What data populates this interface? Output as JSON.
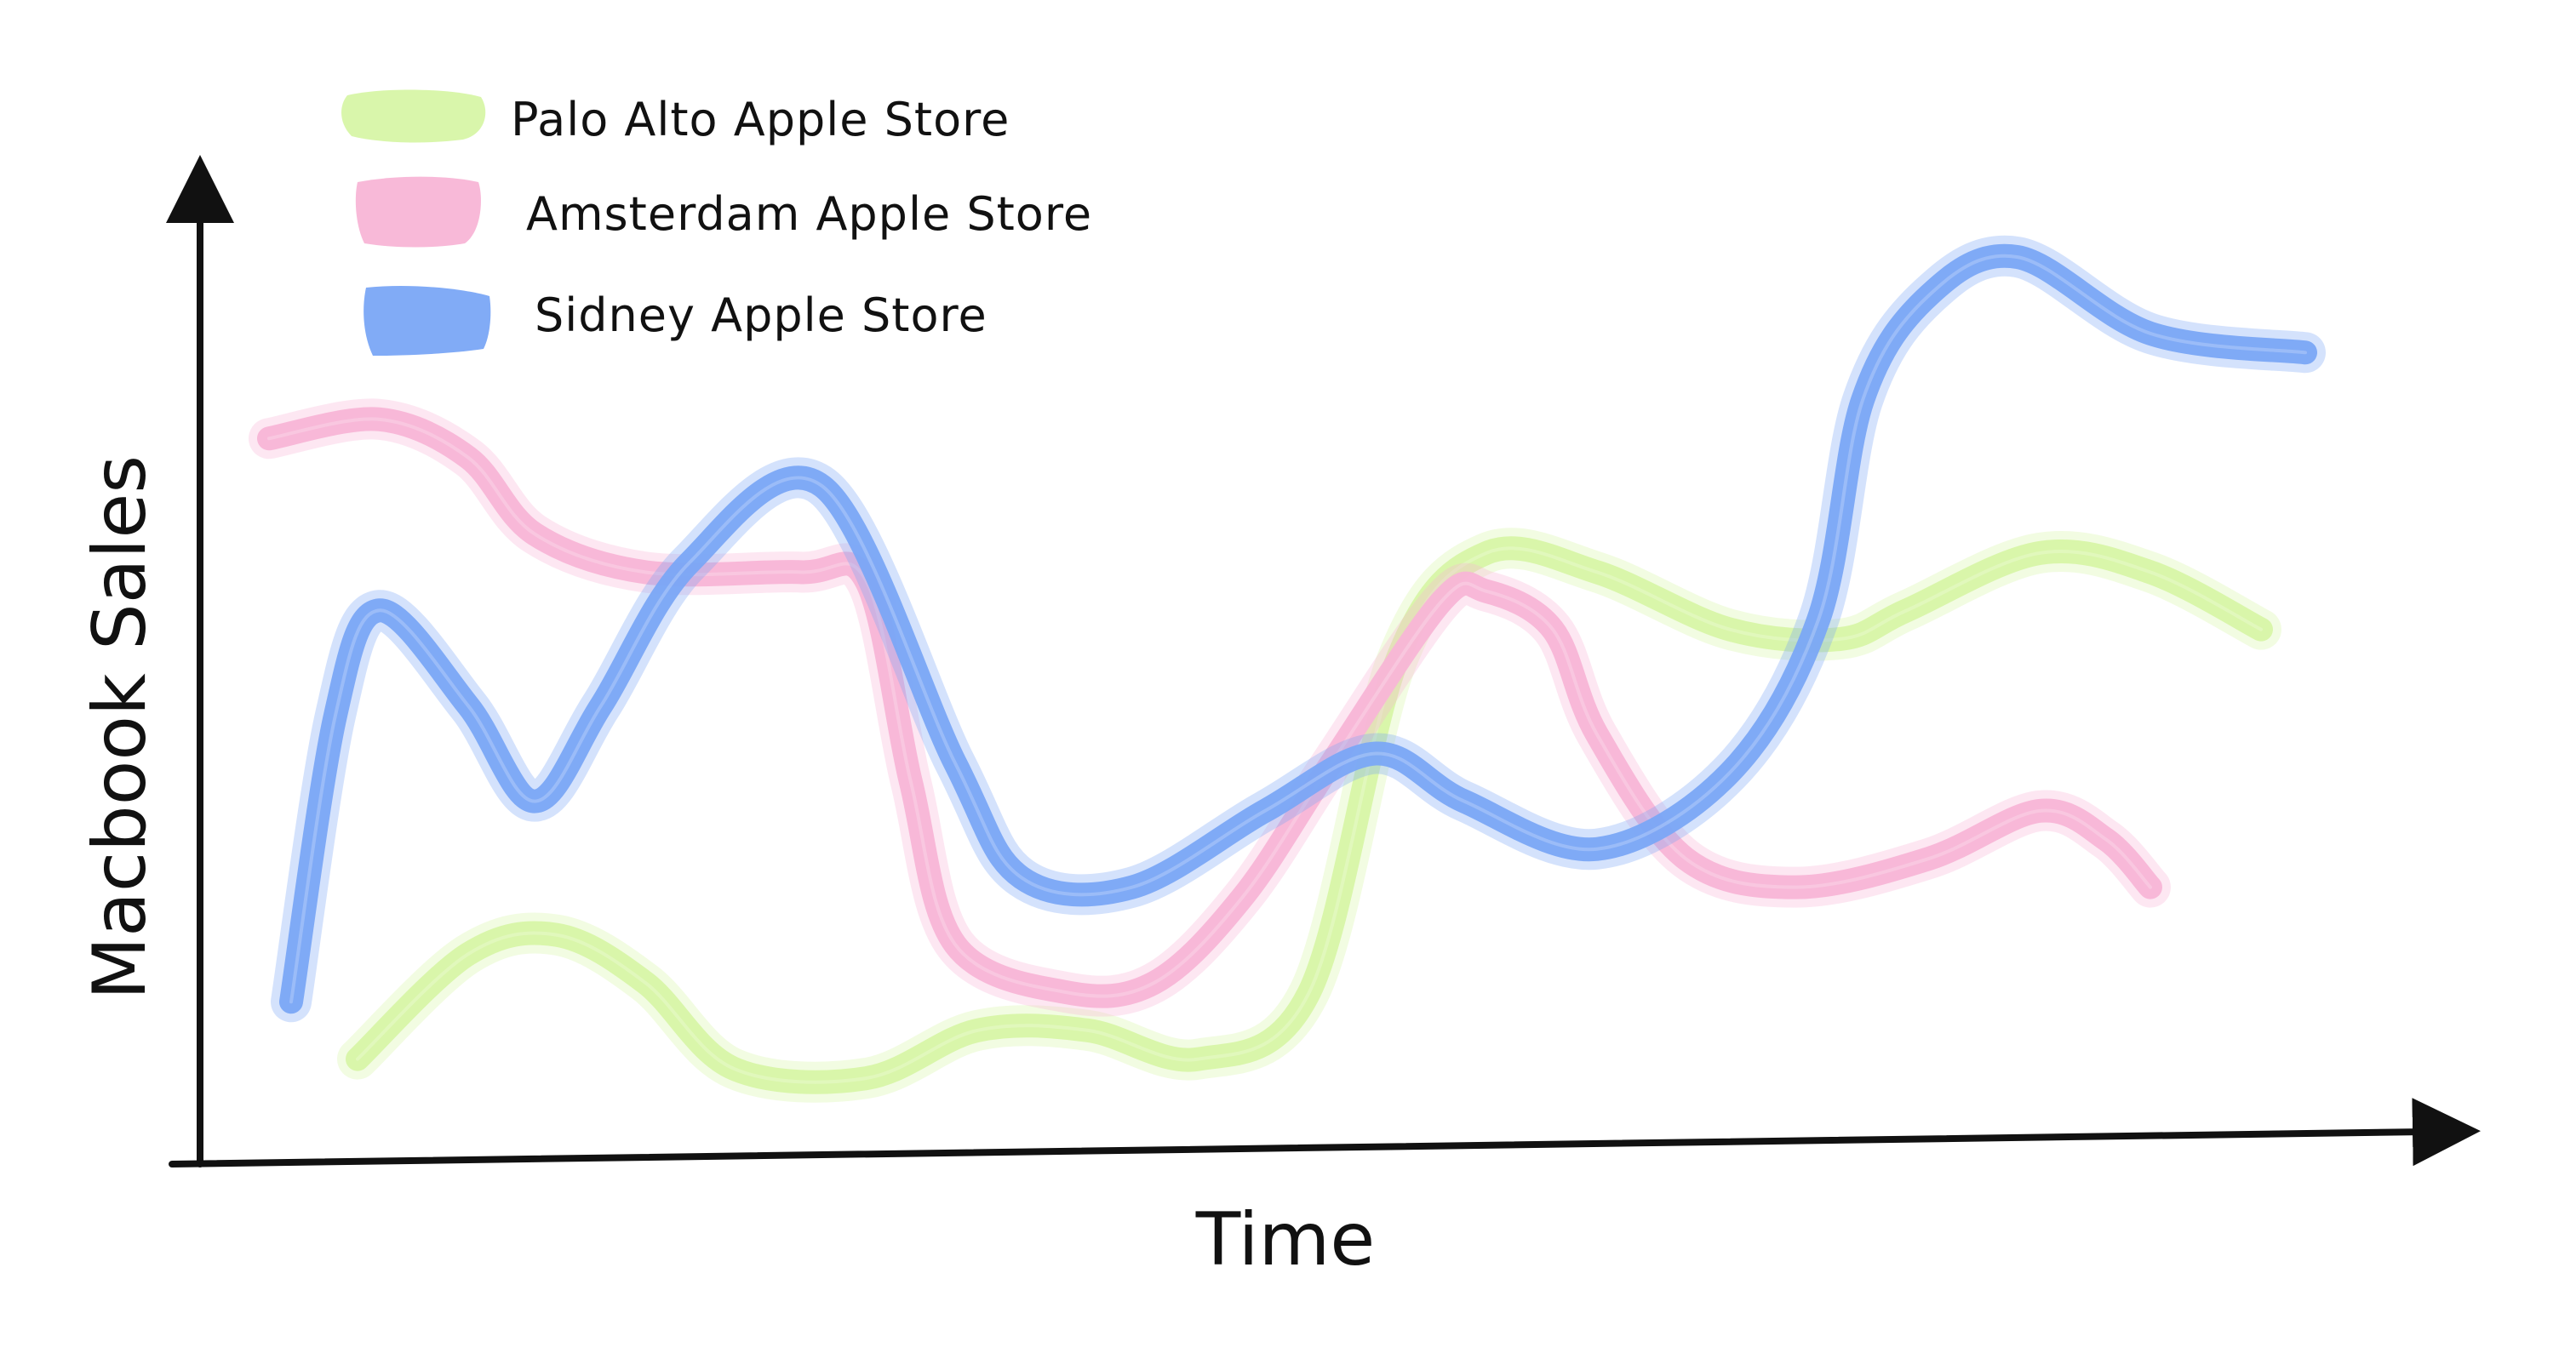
{
  "chart_data": {
    "type": "line",
    "xlabel": "Time",
    "ylabel": "Macbook Sales",
    "legend_position": "top-left",
    "grid": false,
    "axis_ticks": false,
    "series": [
      {
        "name": "Palo Alto Apple Store",
        "color": "#d7f5a6",
        "values": [
          [
            0.05,
            0.11
          ],
          [
            0.1,
            0.22
          ],
          [
            0.14,
            0.24
          ],
          [
            0.18,
            0.19
          ],
          [
            0.22,
            0.1
          ],
          [
            0.28,
            0.09
          ],
          [
            0.33,
            0.14
          ],
          [
            0.38,
            0.14
          ],
          [
            0.43,
            0.11
          ],
          [
            0.48,
            0.18
          ],
          [
            0.52,
            0.53
          ],
          [
            0.56,
            0.64
          ],
          [
            0.61,
            0.62
          ],
          [
            0.67,
            0.56
          ],
          [
            0.72,
            0.55
          ],
          [
            0.75,
            0.58
          ],
          [
            0.81,
            0.64
          ],
          [
            0.86,
            0.62
          ],
          [
            0.91,
            0.56
          ]
        ]
      },
      {
        "name": "Amsterdam Apple Store",
        "color": "#f8b5d6",
        "values": [
          [
            0.01,
            0.76
          ],
          [
            0.06,
            0.78
          ],
          [
            0.1,
            0.74
          ],
          [
            0.13,
            0.66
          ],
          [
            0.18,
            0.62
          ],
          [
            0.25,
            0.62
          ],
          [
            0.28,
            0.61
          ],
          [
            0.3,
            0.4
          ],
          [
            0.32,
            0.23
          ],
          [
            0.37,
            0.18
          ],
          [
            0.41,
            0.19
          ],
          [
            0.45,
            0.28
          ],
          [
            0.49,
            0.42
          ],
          [
            0.54,
            0.59
          ],
          [
            0.56,
            0.6
          ],
          [
            0.59,
            0.56
          ],
          [
            0.61,
            0.45
          ],
          [
            0.65,
            0.32
          ],
          [
            0.7,
            0.29
          ],
          [
            0.76,
            0.32
          ],
          [
            0.81,
            0.37
          ],
          [
            0.84,
            0.34
          ],
          [
            0.86,
            0.29
          ]
        ]
      },
      {
        "name": "Sidney Apple Store",
        "color": "#7aa6f5",
        "values": [
          [
            0.02,
            0.17
          ],
          [
            0.04,
            0.47
          ],
          [
            0.06,
            0.58
          ],
          [
            0.1,
            0.48
          ],
          [
            0.13,
            0.38
          ],
          [
            0.16,
            0.48
          ],
          [
            0.2,
            0.63
          ],
          [
            0.26,
            0.71
          ],
          [
            0.32,
            0.42
          ],
          [
            0.35,
            0.3
          ],
          [
            0.4,
            0.29
          ],
          [
            0.46,
            0.37
          ],
          [
            0.51,
            0.43
          ],
          [
            0.55,
            0.38
          ],
          [
            0.61,
            0.33
          ],
          [
            0.67,
            0.41
          ],
          [
            0.71,
            0.57
          ],
          [
            0.73,
            0.8
          ],
          [
            0.76,
            0.91
          ],
          [
            0.8,
            0.95
          ],
          [
            0.86,
            0.87
          ],
          [
            0.93,
            0.85
          ]
        ]
      }
    ]
  }
}
